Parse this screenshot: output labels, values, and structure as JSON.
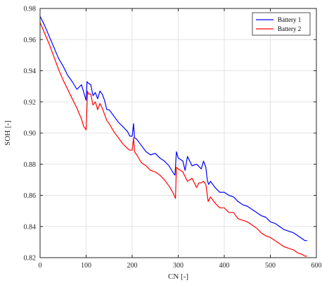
{
  "chart_data": {
    "type": "line",
    "xlabel": "CN [-]",
    "ylabel": "SOH [-]",
    "xlim": [
      0,
      600
    ],
    "ylim": [
      0.82,
      0.98
    ],
    "xticks": [
      0,
      100,
      200,
      300,
      400,
      500,
      600
    ],
    "yticks": [
      0.82,
      0.84,
      0.86,
      0.88,
      0.9,
      0.92,
      0.94,
      0.96,
      0.98
    ],
    "ytick_labels": [
      "0.82",
      "0.84",
      "0.86",
      "0.88",
      "0.90",
      "0.92",
      "0.94",
      "0.96",
      "0.98"
    ],
    "grid": true,
    "legend_position": "top-right",
    "series": [
      {
        "name": "Battery 1",
        "color": "#0000ff",
        "x": [
          0,
          10,
          20,
          30,
          40,
          50,
          60,
          70,
          80,
          90,
          95,
          100,
          102,
          105,
          110,
          115,
          120,
          125,
          130,
          135,
          140,
          145,
          150,
          160,
          170,
          180,
          190,
          195,
          200,
          203,
          205,
          210,
          220,
          230,
          240,
          250,
          260,
          270,
          280,
          290,
          293,
          296,
          300,
          310,
          315,
          320,
          330,
          340,
          350,
          355,
          360,
          363,
          366,
          370,
          380,
          390,
          400,
          410,
          420,
          430,
          440,
          450,
          460,
          470,
          480,
          490,
          500,
          510,
          520,
          530,
          540,
          550,
          560,
          570,
          575,
          580
        ],
        "values": [
          0.975,
          0.969,
          0.962,
          0.955,
          0.948,
          0.943,
          0.937,
          0.933,
          0.928,
          0.931,
          0.926,
          0.921,
          0.933,
          0.932,
          0.931,
          0.924,
          0.926,
          0.922,
          0.927,
          0.925,
          0.921,
          0.915,
          0.915,
          0.911,
          0.907,
          0.904,
          0.901,
          0.898,
          0.898,
          0.906,
          0.897,
          0.896,
          0.892,
          0.888,
          0.886,
          0.887,
          0.884,
          0.882,
          0.879,
          0.874,
          0.873,
          0.888,
          0.884,
          0.882,
          0.876,
          0.885,
          0.879,
          0.88,
          0.877,
          0.882,
          0.878,
          0.87,
          0.867,
          0.869,
          0.865,
          0.862,
          0.862,
          0.86,
          0.859,
          0.856,
          0.854,
          0.853,
          0.851,
          0.849,
          0.847,
          0.846,
          0.843,
          0.842,
          0.84,
          0.838,
          0.837,
          0.836,
          0.834,
          0.832,
          0.831,
          0.831
        ]
      },
      {
        "name": "Battery 2",
        "color": "#ff0000",
        "x": [
          0,
          10,
          20,
          30,
          40,
          50,
          60,
          70,
          80,
          90,
          95,
          98,
          100,
          103,
          105,
          110,
          115,
          120,
          125,
          130,
          135,
          140,
          145,
          150,
          160,
          170,
          180,
          190,
          195,
          200,
          203,
          205,
          210,
          220,
          230,
          240,
          250,
          260,
          270,
          280,
          290,
          294,
          296,
          300,
          310,
          320,
          330,
          340,
          345,
          350,
          355,
          360,
          365,
          370,
          380,
          390,
          400,
          410,
          420,
          430,
          440,
          450,
          460,
          470,
          480,
          490,
          500,
          510,
          520,
          530,
          540,
          550,
          560,
          570,
          575,
          580
        ],
        "values": [
          0.971,
          0.964,
          0.957,
          0.949,
          0.941,
          0.934,
          0.928,
          0.922,
          0.916,
          0.909,
          0.904,
          0.903,
          0.902,
          0.927,
          0.925,
          0.925,
          0.918,
          0.92,
          0.915,
          0.919,
          0.916,
          0.912,
          0.908,
          0.906,
          0.901,
          0.897,
          0.893,
          0.89,
          0.889,
          0.889,
          0.897,
          0.888,
          0.886,
          0.881,
          0.879,
          0.876,
          0.875,
          0.873,
          0.87,
          0.866,
          0.861,
          0.858,
          0.878,
          0.877,
          0.875,
          0.869,
          0.871,
          0.865,
          0.868,
          0.868,
          0.869,
          0.867,
          0.856,
          0.859,
          0.855,
          0.852,
          0.852,
          0.849,
          0.849,
          0.845,
          0.844,
          0.843,
          0.841,
          0.839,
          0.836,
          0.834,
          0.833,
          0.831,
          0.829,
          0.827,
          0.826,
          0.825,
          0.823,
          0.822,
          0.821,
          0.821
        ]
      }
    ]
  }
}
